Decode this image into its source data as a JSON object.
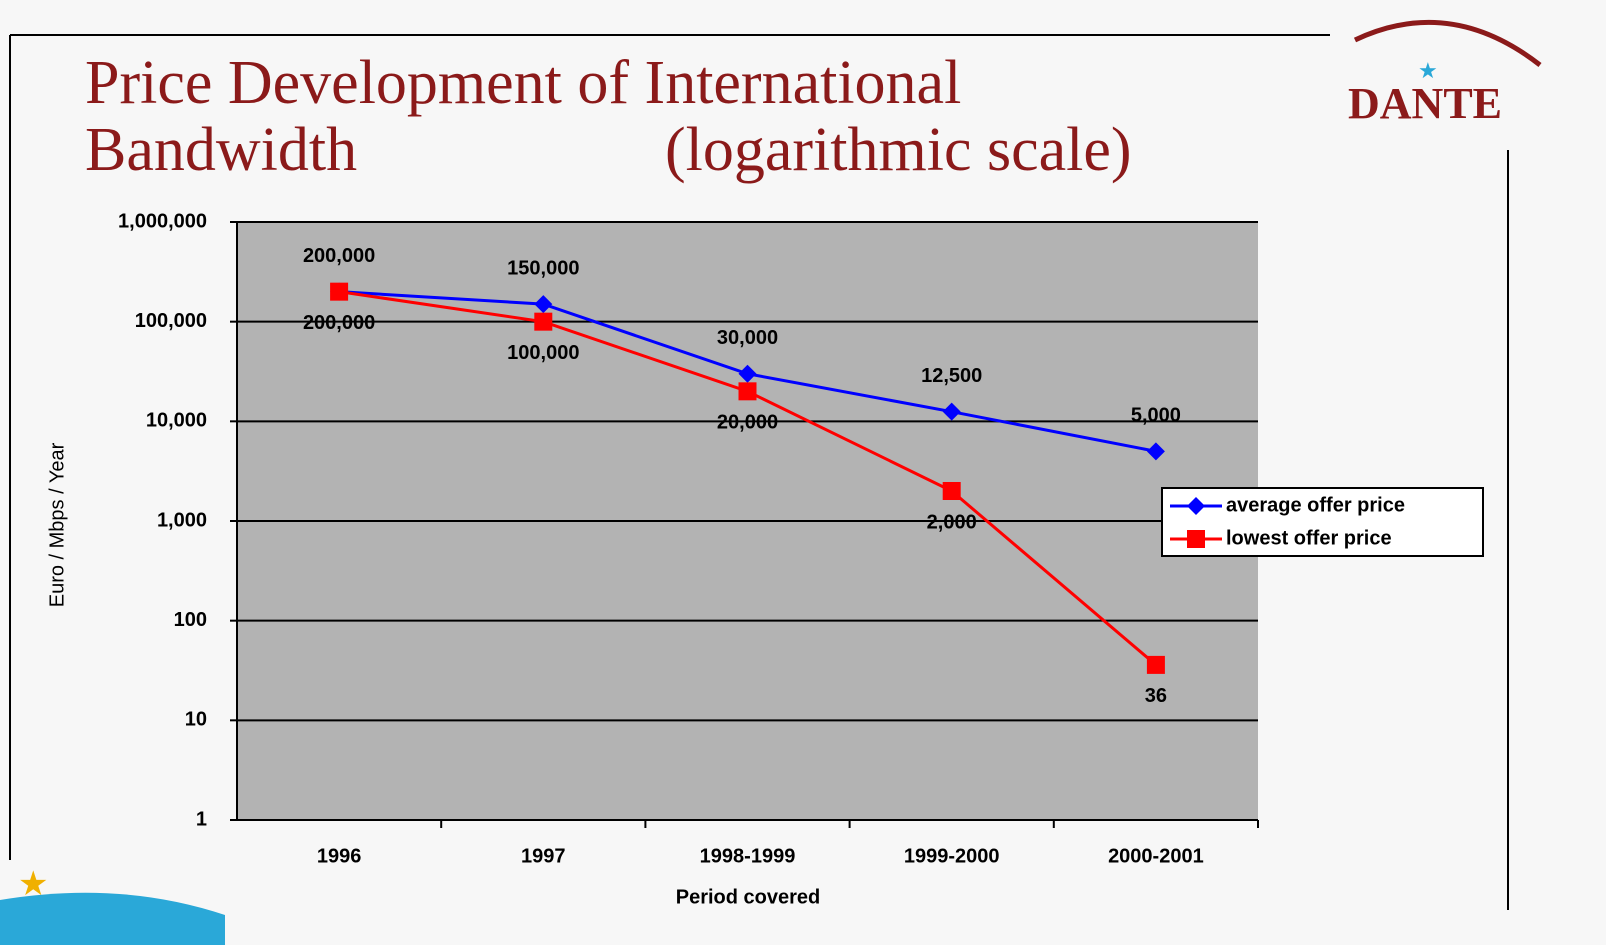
{
  "chart_data": {
    "type": "line",
    "title": [
      "Price Development of International",
      "Bandwidth"
    ],
    "subtitle": "(logarithmic scale)",
    "logo": "DANTE",
    "x_label": "Period covered",
    "y_label": "Euro / Mbps / Year",
    "categories": [
      "1996",
      "1997",
      "1998-1999",
      "1999-2000",
      "2000-2001"
    ],
    "series": [
      {
        "name": "average offer price",
        "color": "#0000ff",
        "marker": "diamond",
        "values": [
          200000,
          150000,
          30000,
          12500,
          5000
        ],
        "value_labels": [
          "200,000",
          "150,000",
          "30,000",
          "12,500",
          "5,000"
        ]
      },
      {
        "name": "lowest offer price",
        "color": "#ff0000",
        "marker": "square",
        "values": [
          200000,
          100000,
          20000,
          2000,
          36
        ],
        "value_labels": [
          "200,000",
          "100,000",
          "20,000",
          "2,000",
          "36"
        ]
      }
    ],
    "yscale": "log",
    "ylim": [
      1,
      1000000
    ],
    "yticks": [
      {
        "value": 1000000,
        "label": "1,000,000"
      },
      {
        "value": 100000,
        "label": "100,000"
      },
      {
        "value": 10000,
        "label": "10,000"
      },
      {
        "value": 1000,
        "label": "1,000"
      },
      100,
      10,
      1
    ],
    "grid": true,
    "legend": "right"
  }
}
